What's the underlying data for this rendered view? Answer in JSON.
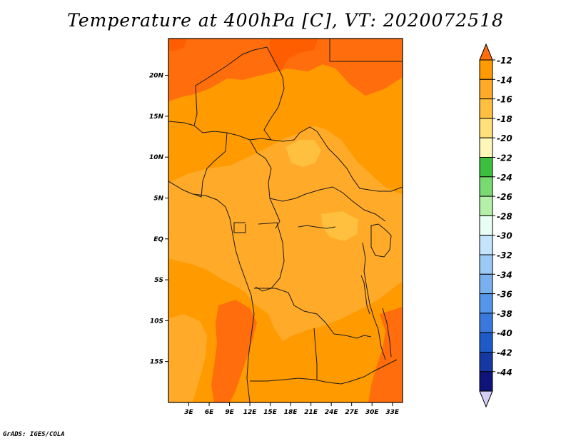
{
  "title": "Temperature at 400hPa [C], VT: 2020072518",
  "credit": "GrADS: IGES/COLA",
  "map": {
    "lat_labels": [
      "20N",
      "15N",
      "10N",
      "5N",
      "EQ",
      "5S",
      "10S",
      "15S"
    ],
    "lat_values": [
      20,
      15,
      10,
      5,
      0,
      -5,
      -10,
      -15
    ],
    "lon_labels": [
      "3E",
      "6E",
      "9E",
      "12E",
      "15E",
      "18E",
      "21E",
      "24E",
      "27E",
      "30E",
      "33E"
    ],
    "lon_values": [
      3,
      6,
      9,
      12,
      15,
      18,
      21,
      24,
      27,
      30,
      33
    ],
    "lon_range": [
      0,
      34.5
    ],
    "lat_range": [
      -20,
      24.5
    ]
  },
  "colorbar": {
    "labels": [
      "-12",
      "-14",
      "-16",
      "-18",
      "-20",
      "-22",
      "-24",
      "-26",
      "-28",
      "-30",
      "-32",
      "-34",
      "-36",
      "-38",
      "-40",
      "-42",
      "-44"
    ],
    "colors": [
      "#ff6d0c",
      "#ff9a00",
      "#ffaa28",
      "#ffc040",
      "#ffe07a",
      "#fff6ba",
      "#3cbf3c",
      "#78da70",
      "#b4f0a8",
      "#e8fff6",
      "#c4e4fc",
      "#9ccaf8",
      "#78b0f0",
      "#5496ea",
      "#3a78de",
      "#1e5ac8",
      "#1638a2",
      "#0e147a",
      "#d4cdf6"
    ]
  },
  "colors": {
    "deep_orange": "#ff5e00",
    "orange_red": "#ff6d0c",
    "orange": "#ff9a00",
    "light_orange": "#ffaa28",
    "pale_orange": "#ffc040"
  }
}
